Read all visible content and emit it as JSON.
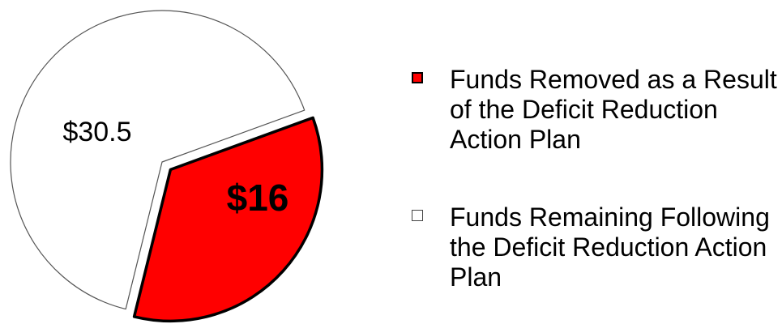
{
  "chart_data": {
    "type": "pie",
    "categories": [
      "Funds Removed as a Result of the Deficit Reduction Action Plan",
      "Funds Remaining Following the Deficit Reduction Action Plan"
    ],
    "values": [
      16,
      30.5
    ],
    "value_labels": [
      "$16",
      "$30.5"
    ],
    "colors": [
      "#ff0000",
      "#ffffff"
    ]
  }
}
